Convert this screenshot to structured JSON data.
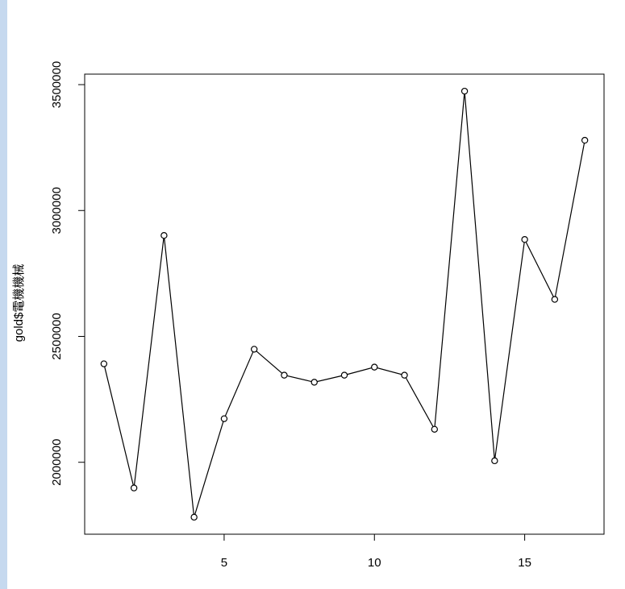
{
  "chart_data": {
    "type": "line",
    "ylabel": "gold$電機機械",
    "x": [
      1,
      2,
      3,
      4,
      5,
      6,
      7,
      8,
      9,
      10,
      11,
      12,
      13,
      14,
      15,
      16,
      17
    ],
    "series": [
      {
        "color": "#000000",
        "values": [
          2391000,
          1898000,
          2901000,
          1782000,
          2173000,
          2449000,
          2346000,
          2318000,
          2346000,
          2378000,
          2346000,
          2131000,
          3474000,
          2006000,
          2885000,
          2647000,
          3279000
        ]
      }
    ],
    "xlim": [
      0.36,
      17.64
    ],
    "xticks": [
      5,
      10,
      15
    ],
    "ylim": [
      1714300,
      3541700
    ],
    "yticks": [
      2000000,
      2500000,
      3000000,
      3500000
    ]
  }
}
